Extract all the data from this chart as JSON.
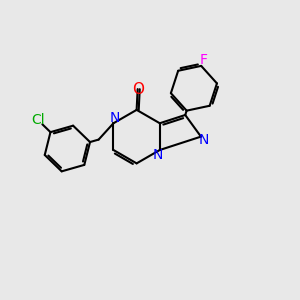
{
  "background_color": "#e8e8e8",
  "bond_color": "#000000",
  "bond_width": 1.5,
  "atom_colors": {
    "N": "#0000ff",
    "O": "#ff0000",
    "Cl": "#00aa00",
    "F": "#ff00ff",
    "C": "#000000"
  },
  "font_size": 9
}
